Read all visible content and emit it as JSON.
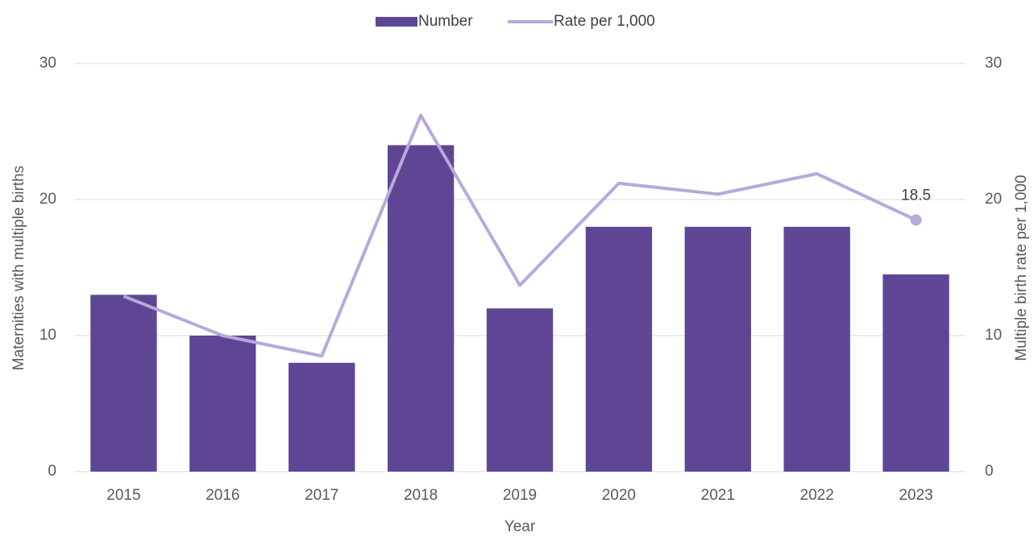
{
  "chart_data": {
    "type": "bar-line",
    "x_label": "Year",
    "y_label": "Maternities with multiple births",
    "y2_label": "Multiple birth rate per 1,000",
    "categories": [
      "2015",
      "2016",
      "2017",
      "2018",
      "2019",
      "2020",
      "2021",
      "2022",
      "2023"
    ],
    "series": [
      {
        "name": "Number",
        "type": "bar",
        "color": "#5e4695",
        "values": [
          13,
          10,
          8,
          24,
          12,
          18,
          18,
          18,
          14.5
        ]
      },
      {
        "name": "Rate per 1,000",
        "type": "line",
        "axis": "y2",
        "color": "#b8a9d9",
        "values": [
          12.9,
          10.0,
          8.5,
          26.2,
          13.7,
          21.2,
          20.4,
          21.9,
          18.5
        ]
      }
    ],
    "ylim": [
      0,
      30
    ],
    "yticks": [
      0,
      10,
      20,
      30
    ],
    "y2lim": [
      0,
      30
    ],
    "y2ticks": [
      0,
      10,
      20,
      30
    ],
    "grid": true,
    "legend": "top"
  }
}
